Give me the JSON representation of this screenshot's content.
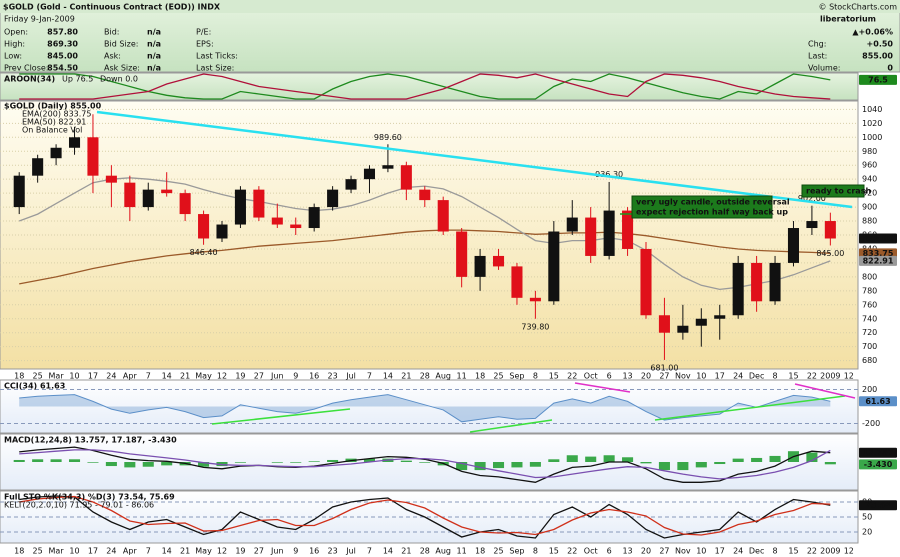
{
  "header": {
    "title": "$GOLD (Gold - Continuous Contract (EOD)) INDX",
    "date": "Friday 9-Jan-2009",
    "credit": "© StockCharts.com",
    "watermark": "liberatorium",
    "col1": [
      {
        "label": "Open:",
        "value": "857.80"
      },
      {
        "label": "High:",
        "value": "869.30"
      },
      {
        "label": "Low:",
        "value": "845.00"
      },
      {
        "label": "Prev Close:",
        "value": "854.50"
      }
    ],
    "col2": [
      {
        "label": "Bid:",
        "value": "n/a"
      },
      {
        "label": "Bid Size:",
        "value": "n/a"
      },
      {
        "label": "Ask:",
        "value": "n/a"
      },
      {
        "label": "Ask Size:",
        "value": "n/a"
      }
    ],
    "col3": [
      "P/E:",
      "EPS:",
      "Last Ticks:",
      "Last Size:"
    ],
    "change_pct": "▲+0.06%",
    "col4": [
      {
        "label": "Chg:",
        "value": "+0.50"
      },
      {
        "label": "Last:",
        "value": "855.00"
      },
      {
        "label": "Volume:",
        "value": "0"
      }
    ]
  },
  "chart_data": [
    {
      "type": "candlestick",
      "title": "$GOLD (Daily) 855.00",
      "extra_legend": "On Balance Vol",
      "tag": "855.00",
      "categories": [
        "18",
        "25",
        "Mar",
        "10",
        "17",
        "24",
        "Apr",
        "7",
        "14",
        "21",
        "May",
        "12",
        "19",
        "27",
        "Jun",
        "9",
        "16",
        "23",
        "Jul",
        "7",
        "14",
        "21",
        "28",
        "Aug",
        "11",
        "18",
        "25",
        "Sep",
        "8",
        "15",
        "22",
        "Oct",
        "6",
        "13",
        "20",
        "27",
        "Nov",
        "10",
        "17",
        "24",
        "Dec",
        "8",
        "15",
        "22",
        "2009",
        "12"
      ],
      "open": [
        900,
        945,
        970,
        985,
        1000,
        945,
        935,
        900,
        925,
        920,
        890,
        855,
        875,
        925,
        885,
        875,
        870,
        900,
        925,
        940,
        955,
        960,
        925,
        910,
        865,
        800,
        830,
        815,
        770,
        765,
        865,
        885,
        830,
        895,
        840,
        745,
        720,
        730,
        740,
        745,
        820,
        765,
        820,
        870,
        880,
        null
      ],
      "high": [
        950,
        975,
        990,
        1015,
        1033,
        960,
        945,
        935,
        950,
        925,
        895,
        880,
        930,
        930,
        905,
        885,
        905,
        930,
        945,
        960,
        990,
        965,
        930,
        915,
        870,
        840,
        840,
        820,
        780,
        880,
        910,
        900,
        936,
        900,
        850,
        770,
        760,
        755,
        760,
        830,
        830,
        830,
        880,
        902,
        892,
        null
      ],
      "low": [
        890,
        935,
        960,
        975,
        920,
        900,
        880,
        895,
        915,
        880,
        846,
        850,
        870,
        880,
        870,
        860,
        865,
        895,
        920,
        920,
        950,
        910,
        900,
        860,
        785,
        780,
        810,
        760,
        740,
        760,
        860,
        820,
        825,
        830,
        740,
        681,
        710,
        700,
        710,
        740,
        750,
        760,
        815,
        860,
        845,
        null
      ],
      "close": [
        945,
        970,
        985,
        1000,
        945,
        935,
        900,
        925,
        920,
        890,
        855,
        875,
        925,
        885,
        875,
        870,
        900,
        925,
        940,
        955,
        960,
        925,
        910,
        865,
        800,
        830,
        815,
        770,
        765,
        865,
        885,
        830,
        895,
        840,
        745,
        720,
        730,
        740,
        745,
        820,
        765,
        820,
        870,
        880,
        855,
        null
      ],
      "up_color": "#111111",
      "down_color": "#e0101a",
      "series": [
        {
          "name": "EMA(200) 833.75",
          "type": "line",
          "color": "#9b5a2a",
          "tag": "833.75",
          "values": [
            790,
            795,
            800,
            806,
            812,
            817,
            822,
            826,
            830,
            833,
            836,
            838,
            841,
            844,
            846,
            848,
            850,
            852,
            855,
            858,
            861,
            864,
            866,
            867,
            867,
            866,
            865,
            863,
            861,
            862,
            863,
            863,
            864,
            862,
            859,
            855,
            851,
            847,
            843,
            840,
            838,
            837,
            836,
            835,
            833.75,
            null
          ]
        },
        {
          "name": "EMA(50) 822.91",
          "type": "line",
          "color": "#9a9a9a",
          "tag": "822.91",
          "values": [
            880,
            890,
            905,
            920,
            935,
            940,
            942,
            940,
            937,
            933,
            925,
            918,
            912,
            908,
            903,
            898,
            895,
            897,
            902,
            910,
            920,
            928,
            930,
            926,
            915,
            900,
            885,
            868,
            852,
            848,
            852,
            852,
            856,
            852,
            838,
            818,
            800,
            788,
            782,
            785,
            790,
            795,
            803,
            813,
            822.91,
            null
          ]
        }
      ],
      "annotations": [
        {
          "value": 846.4,
          "label": "846.40"
        },
        {
          "value": 989.6,
          "label": "989.60"
        },
        {
          "value": 739.8,
          "label": "739.80"
        },
        {
          "value": 936.3,
          "label": "936.30"
        },
        {
          "value": 681,
          "label": "681.00"
        },
        {
          "value": 902,
          "label": "902.00"
        },
        {
          "value": 845,
          "label": "845.00"
        }
      ],
      "notes": [
        "very ugly candle, outside reversal",
        "expect rejection half way back up",
        "ready to crash"
      ],
      "ylim": [
        668,
        1052
      ],
      "yticks": [
        680,
        700,
        720,
        740,
        760,
        780,
        800,
        820,
        840,
        860,
        880,
        900,
        920,
        940,
        960,
        980,
        1000,
        1020,
        1040
      ],
      "grid": true
    },
    {
      "type": "line",
      "title": "AROON(34)",
      "ylim": [
        0,
        100
      ],
      "yticks": [],
      "series": [
        {
          "name": "Up 76.5",
          "type": "line",
          "color": "#1e8a1e",
          "tag": "76.5",
          "values": [
            100,
            100,
            100,
            100,
            90,
            70,
            50,
            30,
            15,
            5,
            0,
            0,
            30,
            20,
            10,
            0,
            0,
            40,
            70,
            90,
            100,
            90,
            70,
            50,
            30,
            10,
            0,
            0,
            0,
            50,
            80,
            70,
            100,
            85,
            65,
            45,
            25,
            10,
            0,
            30,
            20,
            60,
            100,
            90,
            76.5,
            null
          ]
        },
        {
          "name": "Down 0.0",
          "type": "line",
          "color": "#b0103a",
          "values": [
            0,
            0,
            0,
            0,
            0,
            10,
            20,
            30,
            60,
            80,
            100,
            90,
            70,
            50,
            40,
            30,
            20,
            10,
            0,
            0,
            0,
            0,
            20,
            40,
            70,
            100,
            95,
            85,
            100,
            80,
            60,
            40,
            20,
            10,
            70,
            100,
            95,
            85,
            70,
            50,
            35,
            20,
            10,
            5,
            0,
            null
          ]
        }
      ]
    },
    {
      "type": "line",
      "title": "CCI(34) 61.63",
      "ylim": [
        -300,
        300
      ],
      "yticks": [
        -200,
        200
      ],
      "series": [
        {
          "type": "area",
          "color": "#5b8fc8",
          "tag": "61.63",
          "values": [
            100,
            120,
            130,
            140,
            60,
            -30,
            -80,
            -40,
            -10,
            -60,
            -130,
            -110,
            20,
            -20,
            -60,
            -80,
            -30,
            40,
            80,
            110,
            140,
            80,
            20,
            -40,
            -180,
            -150,
            -120,
            -150,
            -140,
            40,
            90,
            40,
            120,
            60,
            -60,
            -160,
            -130,
            -110,
            -90,
            40,
            -10,
            60,
            130,
            110,
            61.63,
            null
          ]
        }
      ]
    },
    {
      "type": "line",
      "title": "MACD(12,24,8) 13.757, 17.187, -3.430",
      "ylim": [
        -40,
        40
      ],
      "yticks": [],
      "series": [
        {
          "type": "bar",
          "color": "#3aa84a",
          "tag": "-3.430",
          "values": [
            3,
            4,
            4,
            4,
            -1,
            -6,
            -8,
            -7,
            -5,
            -5,
            -7,
            -6,
            -1,
            0,
            -1,
            -1,
            1,
            3,
            5,
            5,
            5,
            2,
            -1,
            -5,
            -12,
            -12,
            -9,
            -8,
            -7,
            4,
            10,
            8,
            10,
            7,
            -2,
            -12,
            -12,
            -8,
            -3,
            5,
            6,
            9,
            16,
            14,
            -3.43,
            null
          ]
        },
        {
          "type": "line",
          "color": "#111111",
          "tag": "13.757",
          "values": [
            15,
            18,
            20,
            22,
            17,
            10,
            4,
            2,
            1,
            -2,
            -8,
            -10,
            -6,
            -5,
            -7,
            -8,
            -6,
            -2,
            2,
            5,
            8,
            7,
            4,
            -2,
            -14,
            -20,
            -22,
            -26,
            -30,
            -18,
            -8,
            -6,
            0,
            0,
            -10,
            -25,
            -30,
            -30,
            -28,
            -18,
            -14,
            -6,
            8,
            16,
            13.757,
            null
          ]
        },
        {
          "type": "line",
          "color": "#7a4fb0",
          "values": [
            12,
            14,
            16,
            18,
            18,
            16,
            12,
            9,
            6,
            3,
            -1,
            -4,
            -5,
            -5,
            -6,
            -7,
            -7,
            -5,
            -3,
            0,
            3,
            5,
            5,
            3,
            -2,
            -8,
            -13,
            -18,
            -23,
            -22,
            -18,
            -14,
            -10,
            -7,
            -8,
            -13,
            -18,
            -22,
            -25,
            -23,
            -20,
            -15,
            -8,
            2,
            17.187,
            null
          ]
        }
      ]
    },
    {
      "type": "line",
      "title": "Full STO %K(34,3) %D(3) 73.54, 75.69",
      "subtitle": "KELT(20,2.0,10) 71.95 - 79.01 - 86.06",
      "ylim": [
        0,
        100
      ],
      "yticks": [
        20,
        50,
        80
      ],
      "series": [
        {
          "type": "line",
          "color": "#111111",
          "tag": "73.54",
          "values": [
            85,
            90,
            92,
            90,
            60,
            40,
            25,
            40,
            45,
            30,
            15,
            25,
            60,
            45,
            30,
            25,
            45,
            70,
            80,
            85,
            88,
            65,
            50,
            30,
            10,
            20,
            25,
            12,
            8,
            55,
            70,
            50,
            75,
            55,
            25,
            8,
            15,
            20,
            25,
            60,
            40,
            65,
            85,
            80,
            73.54,
            null
          ]
        },
        {
          "type": "line",
          "color": "#d0301a",
          "values": [
            80,
            86,
            89,
            91,
            80,
            63,
            42,
            35,
            37,
            38,
            22,
            23,
            33,
            43,
            45,
            33,
            33,
            47,
            65,
            78,
            84,
            79,
            68,
            48,
            30,
            20,
            18,
            19,
            15,
            25,
            44,
            58,
            65,
            60,
            52,
            29,
            16,
            14,
            20,
            35,
            42,
            55,
            63,
            77,
            75.69,
            null
          ]
        }
      ]
    }
  ]
}
